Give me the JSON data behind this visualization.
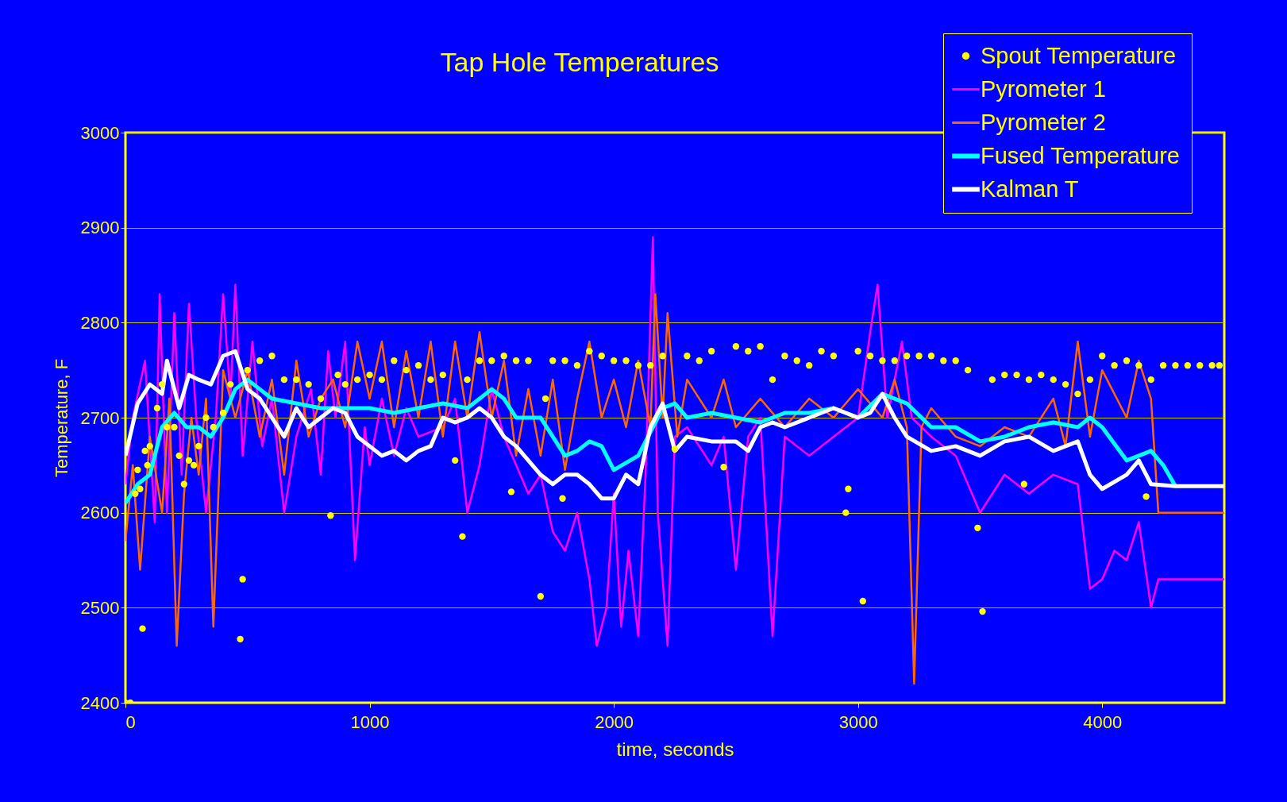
{
  "chart_data": {
    "type": "line",
    "title": "Tap Hole Temperatures",
    "xlabel": "time, seconds",
    "ylabel": "Temperature, F",
    "xlim": [
      0,
      4500
    ],
    "xticks": [
      0,
      1000,
      2000,
      3000,
      4000
    ],
    "ylim": [
      2400,
      3000
    ],
    "yticks": [
      2400,
      2500,
      2600,
      2700,
      2800,
      2900,
      3000
    ],
    "grid": "y",
    "legend": "top right",
    "series": [
      {
        "name": "Spout Temperature",
        "type": "scatter",
        "marker": "circle",
        "color": "#ffff00",
        "x": [
          0,
          20,
          40,
          50,
          60,
          70,
          80,
          90,
          100,
          130,
          150,
          170,
          200,
          220,
          240,
          260,
          280,
          300,
          330,
          360,
          400,
          430,
          470,
          480,
          500,
          550,
          600,
          650,
          700,
          750,
          800,
          840,
          870,
          900,
          950,
          1000,
          1050,
          1100,
          1150,
          1200,
          1250,
          1300,
          1350,
          1380,
          1400,
          1450,
          1500,
          1550,
          1580,
          1600,
          1650,
          1700,
          1720,
          1750,
          1790,
          1800,
          1850,
          1900,
          1950,
          2000,
          2050,
          2100,
          2150,
          2200,
          2250,
          2300,
          2350,
          2400,
          2450,
          2500,
          2550,
          2600,
          2650,
          2700,
          2750,
          2800,
          2850,
          2900,
          2950,
          2960,
          3000,
          3020,
          3050,
          3100,
          3150,
          3200,
          3250,
          3300,
          3350,
          3400,
          3450,
          3490,
          3510,
          3550,
          3600,
          3650,
          3680,
          3700,
          3750,
          3800,
          3850,
          3900,
          3950,
          4000,
          4050,
          4100,
          4150,
          4180,
          4200,
          4250,
          4300,
          4350,
          4400,
          4450,
          4480
        ],
        "values": [
          2400,
          2400,
          2620,
          2645,
          2625,
          2478,
          2665,
          2650,
          2670,
          2710,
          2735,
          2690,
          2690,
          2660,
          2630,
          2655,
          2650,
          2670,
          2700,
          2690,
          2705,
          2735,
          2467,
          2530,
          2750,
          2760,
          2765,
          2740,
          2740,
          2735,
          2720,
          2597,
          2745,
          2735,
          2740,
          2745,
          2740,
          2760,
          2750,
          2755,
          2740,
          2745,
          2655,
          2575,
          2740,
          2760,
          2760,
          2765,
          2622,
          2760,
          2760,
          2512,
          2720,
          2760,
          2615,
          2760,
          2755,
          2770,
          2765,
          2760,
          2760,
          2755,
          2755,
          2765,
          2667,
          2765,
          2760,
          2770,
          2648,
          2775,
          2770,
          2775,
          2740,
          2765,
          2760,
          2755,
          2770,
          2765,
          2600,
          2625,
          2770,
          2507,
          2765,
          2760,
          2760,
          2765,
          2765,
          2765,
          2760,
          2760,
          2750,
          2584,
          2496,
          2740,
          2745,
          2745,
          2630,
          2740,
          2745,
          2740,
          2735,
          2725,
          2740,
          2765,
          2755,
          2760,
          2755,
          2617,
          2740,
          2755,
          2755,
          2755,
          2755,
          2755,
          2755
        ]
      },
      {
        "name": "Pyrometer 1",
        "type": "line",
        "color": "#ff00ff",
        "x": [
          0,
          30,
          80,
          120,
          140,
          170,
          200,
          230,
          260,
          290,
          330,
          370,
          400,
          430,
          450,
          480,
          520,
          560,
          600,
          650,
          700,
          760,
          800,
          830,
          860,
          900,
          940,
          980,
          1000,
          1050,
          1100,
          1150,
          1200,
          1300,
          1350,
          1400,
          1450,
          1500,
          1550,
          1600,
          1650,
          1700,
          1750,
          1800,
          1850,
          1900,
          1930,
          1970,
          2000,
          2030,
          2060,
          2100,
          2130,
          2160,
          2180,
          2220,
          2250,
          2300,
          2400,
          2450,
          2500,
          2550,
          2600,
          2650,
          2700,
          2800,
          2900,
          3000,
          3050,
          3080,
          3120,
          3180,
          3220,
          3300,
          3400,
          3500,
          3550,
          3600,
          3700,
          3800,
          3900,
          3950,
          4000,
          4050,
          4100,
          4150,
          4200,
          4230,
          4500
        ],
        "values": [
          2630,
          2700,
          2760,
          2590,
          2830,
          2600,
          2810,
          2640,
          2820,
          2700,
          2600,
          2700,
          2830,
          2720,
          2840,
          2660,
          2780,
          2670,
          2720,
          2600,
          2680,
          2730,
          2640,
          2770,
          2700,
          2780,
          2550,
          2690,
          2650,
          2720,
          2660,
          2710,
          2680,
          2690,
          2720,
          2600,
          2650,
          2730,
          2680,
          2650,
          2620,
          2640,
          2580,
          2560,
          2600,
          2530,
          2460,
          2500,
          2620,
          2480,
          2560,
          2470,
          2640,
          2890,
          2600,
          2460,
          2680,
          2690,
          2650,
          2680,
          2540,
          2680,
          2700,
          2470,
          2680,
          2660,
          2680,
          2700,
          2790,
          2840,
          2700,
          2780,
          2700,
          2680,
          2660,
          2600,
          2620,
          2640,
          2620,
          2640,
          2630,
          2520,
          2530,
          2560,
          2550,
          2590,
          2500,
          2530,
          2530
        ]
      },
      {
        "name": "Pyrometer 2",
        "type": "line",
        "color": "#ff6600",
        "x": [
          0,
          30,
          60,
          100,
          150,
          180,
          210,
          240,
          270,
          300,
          330,
          360,
          400,
          450,
          500,
          550,
          600,
          650,
          700,
          750,
          800,
          850,
          900,
          950,
          1000,
          1050,
          1100,
          1150,
          1200,
          1250,
          1300,
          1350,
          1400,
          1450,
          1500,
          1550,
          1600,
          1650,
          1700,
          1750,
          1800,
          1850,
          1900,
          1950,
          2000,
          2050,
          2100,
          2150,
          2170,
          2200,
          2220,
          2260,
          2300,
          2400,
          2450,
          2500,
          2600,
          2700,
          2800,
          2900,
          3000,
          3100,
          3150,
          3200,
          3230,
          3260,
          3300,
          3400,
          3500,
          3600,
          3700,
          3800,
          3850,
          3900,
          3950,
          4000,
          4100,
          4150,
          4200,
          4230,
          4500
        ],
        "values": [
          2570,
          2650,
          2540,
          2680,
          2600,
          2720,
          2460,
          2620,
          2700,
          2640,
          2720,
          2480,
          2750,
          2700,
          2750,
          2680,
          2740,
          2640,
          2760,
          2680,
          2720,
          2740,
          2690,
          2780,
          2720,
          2780,
          2690,
          2770,
          2700,
          2780,
          2680,
          2780,
          2700,
          2790,
          2700,
          2760,
          2660,
          2730,
          2660,
          2740,
          2645,
          2720,
          2780,
          2700,
          2740,
          2690,
          2760,
          2690,
          2830,
          2700,
          2810,
          2680,
          2740,
          2700,
          2740,
          2690,
          2720,
          2690,
          2720,
          2700,
          2730,
          2700,
          2740,
          2690,
          2420,
          2690,
          2710,
          2680,
          2670,
          2690,
          2680,
          2720,
          2670,
          2780,
          2680,
          2750,
          2700,
          2760,
          2720,
          2600,
          2600
        ]
      },
      {
        "name": "Fused Temperature",
        "type": "line",
        "color": "#00ffff",
        "x": [
          0,
          50,
          100,
          150,
          200,
          250,
          300,
          350,
          400,
          450,
          500,
          550,
          600,
          700,
          800,
          900,
          1000,
          1100,
          1200,
          1300,
          1400,
          1500,
          1550,
          1600,
          1700,
          1750,
          1800,
          1850,
          1900,
          1950,
          2000,
          2100,
          2200,
          2250,
          2300,
          2400,
          2500,
          2600,
          2700,
          2800,
          2900,
          3000,
          3100,
          3200,
          3300,
          3400,
          3500,
          3600,
          3700,
          3800,
          3900,
          3950,
          4000,
          4100,
          4200,
          4250,
          4300
        ],
        "values": [
          2610,
          2630,
          2640,
          2690,
          2705,
          2690,
          2690,
          2680,
          2700,
          2730,
          2740,
          2730,
          2720,
          2715,
          2710,
          2710,
          2710,
          2705,
          2710,
          2715,
          2710,
          2730,
          2720,
          2700,
          2700,
          2680,
          2660,
          2665,
          2675,
          2670,
          2645,
          2660,
          2710,
          2715,
          2700,
          2705,
          2700,
          2695,
          2705,
          2705,
          2710,
          2700,
          2725,
          2715,
          2690,
          2690,
          2675,
          2680,
          2690,
          2695,
          2690,
          2700,
          2690,
          2655,
          2665,
          2650,
          2628
        ]
      },
      {
        "name": "Kalman T",
        "type": "line",
        "color": "#ffffff",
        "x": [
          0,
          50,
          100,
          150,
          170,
          220,
          260,
          300,
          350,
          400,
          450,
          500,
          550,
          600,
          650,
          700,
          750,
          800,
          850,
          900,
          950,
          1000,
          1050,
          1100,
          1150,
          1200,
          1250,
          1300,
          1350,
          1400,
          1450,
          1500,
          1550,
          1600,
          1650,
          1700,
          1750,
          1800,
          1850,
          1900,
          1950,
          2000,
          2050,
          2100,
          2150,
          2200,
          2250,
          2300,
          2400,
          2500,
          2550,
          2600,
          2650,
          2700,
          2800,
          2900,
          3000,
          3050,
          3100,
          3150,
          3200,
          3300,
          3400,
          3500,
          3600,
          3700,
          3800,
          3900,
          3950,
          4000,
          4100,
          4150,
          4200,
          4300,
          4500
        ],
        "values": [
          2660,
          2715,
          2735,
          2725,
          2760,
          2710,
          2745,
          2740,
          2735,
          2765,
          2770,
          2730,
          2720,
          2700,
          2680,
          2710,
          2690,
          2700,
          2710,
          2705,
          2680,
          2670,
          2660,
          2665,
          2655,
          2665,
          2670,
          2700,
          2695,
          2700,
          2710,
          2700,
          2680,
          2670,
          2655,
          2640,
          2630,
          2640,
          2640,
          2630,
          2615,
          2615,
          2640,
          2630,
          2690,
          2715,
          2665,
          2680,
          2675,
          2675,
          2665,
          2690,
          2695,
          2690,
          2700,
          2710,
          2700,
          2705,
          2725,
          2700,
          2680,
          2665,
          2670,
          2660,
          2675,
          2680,
          2665,
          2675,
          2640,
          2625,
          2640,
          2655,
          2630,
          2628,
          2628
        ]
      }
    ]
  }
}
